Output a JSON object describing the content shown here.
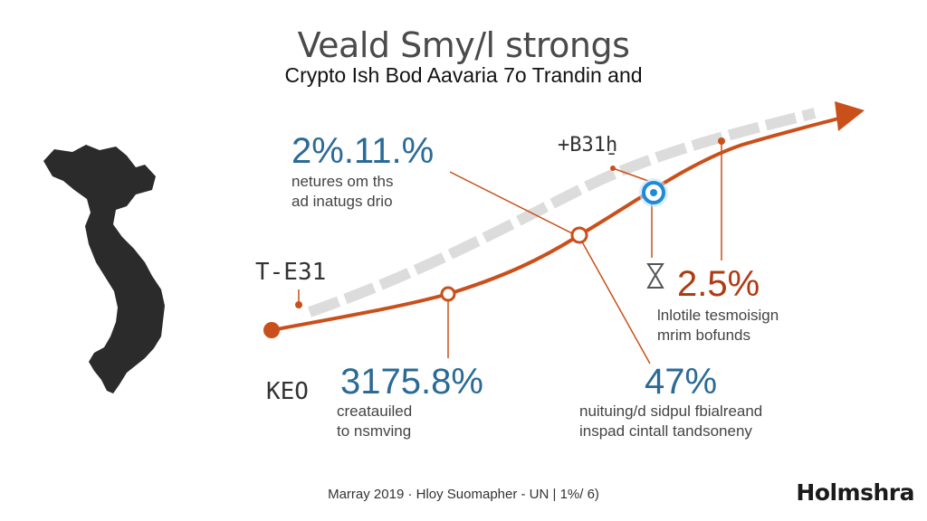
{
  "header": {
    "title": "Veald Smy/l strongs",
    "subtitle": "Crypto Ish  Bod Aavaria 7o Trandin and"
  },
  "callouts": {
    "top_left": {
      "value": "2%.11.%",
      "line1": "netures om ths",
      "line2": "ad inatugs drio"
    },
    "bottom_left": {
      "value": "3175.8%",
      "line1": "creatauiled",
      "line2": "to nsmving"
    },
    "right": {
      "value": "2.5%",
      "line1": "lnlotile tesmoisign",
      "line2": "mrim bofunds"
    },
    "bottom_right": {
      "value": "47%",
      "line1": "nuituing/d sidpul fbialreand",
      "line2": "inspad cintall tandsoneny"
    }
  },
  "markers": {
    "tdn": "T-E31",
    "keo": "KEO",
    "top_code": "+B31̱h",
    "hourglass": "X"
  },
  "footer": {
    "text": "Marray 2019 · Hloy Suomapher - UN | 1%/ 6)"
  },
  "brand": {
    "name": "Holmshra"
  },
  "colors": {
    "accent": "#c9501a",
    "blue": "#2a6a96",
    "map": "#2b2b2b",
    "ribbon": "#d9d9d9"
  }
}
